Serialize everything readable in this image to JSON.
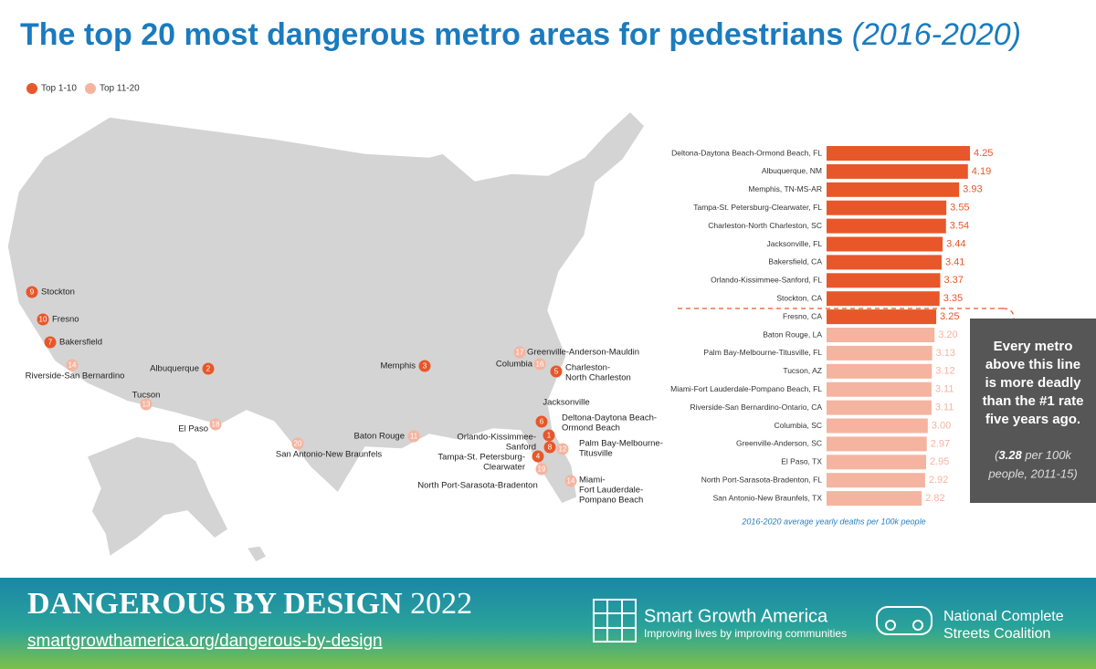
{
  "title": "The top 20 most dangerous metro areas for pedestrians",
  "title_years": "(2016-2020)",
  "legend": [
    {
      "label": "Top 1-10",
      "color": "#e8572a"
    },
    {
      "label": "Top 11-20",
      "color": "#f5b4a0"
    }
  ],
  "map_markers": [
    {
      "rank": 9,
      "lines": [
        "Stockton"
      ],
      "group": 0
    },
    {
      "rank": 10,
      "lines": [
        "Fresno"
      ],
      "group": 0
    },
    {
      "rank": 7,
      "lines": [
        "Bakersfield"
      ],
      "group": 0
    },
    {
      "rank": 14,
      "lines": [
        "Riverside-San Bernardino"
      ],
      "group": 1
    },
    {
      "rank": 2,
      "lines": [
        "Albuquerque"
      ],
      "group": 0
    },
    {
      "rank": 13,
      "lines": [
        "Tucson"
      ],
      "group": 1
    },
    {
      "rank": 18,
      "lines": [
        "El Paso"
      ],
      "group": 1
    },
    {
      "rank": 20,
      "lines": [
        "San Antonio-New Braunfels"
      ],
      "group": 1
    },
    {
      "rank": 11,
      "lines": [
        "Baton Rouge"
      ],
      "group": 1
    },
    {
      "rank": 3,
      "lines": [
        "Memphis"
      ],
      "group": 0
    },
    {
      "rank": 17,
      "lines": [
        "Greenville-Anderson-Mauldin"
      ],
      "group": 1
    },
    {
      "rank": 16,
      "lines": [
        "Columbia"
      ],
      "group": 1
    },
    {
      "rank": 5,
      "lines": [
        "Charleston-",
        "North Charleston"
      ],
      "group": 0
    },
    {
      "rank": 6,
      "lines": [
        "Jacksonville"
      ],
      "group": 0
    },
    {
      "rank": 1,
      "lines": [
        "Deltona-Daytona Beach-",
        "Ormond Beach"
      ],
      "group": 0
    },
    {
      "rank": 8,
      "lines": [
        "Orlando-Kissimmee-",
        "Sanford"
      ],
      "group": 0
    },
    {
      "rank": 12,
      "lines": [
        "Palm Bay-Melbourne-",
        "Titusville"
      ],
      "group": 1
    },
    {
      "rank": 4,
      "lines": [
        "Tampa-St. Petersburg-",
        "Clearwater"
      ],
      "group": 0
    },
    {
      "rank": 19,
      "lines": [
        "North Port-Sarasota-Bradenton"
      ],
      "group": 1
    },
    {
      "rank": 14,
      "lines": [
        "Miami-",
        "Fort Lauderdale-",
        "Pompano Beach"
      ],
      "group": 1
    }
  ],
  "chart_data": {
    "type": "bar",
    "orientation": "horizontal",
    "categories": [
      "Deltona-Daytona Beach-Ormond Beach, FL",
      "Albuquerque, NM",
      "Memphis, TN-MS-AR",
      "Tampa-St. Petersburg-Clearwater, FL",
      "Charleston-North Charleston, SC",
      "Jacksonville, FL",
      "Bakersfield, CA",
      "Orlando-Kissimmee-Sanford, FL",
      "Stockton, CA",
      "Fresno, CA",
      "Baton Rouge, LA",
      "Palm Bay-Melbourne-Titusville, FL",
      "Tucson, AZ",
      "Miami-Fort Lauderdale-Pompano Beach, FL",
      "Riverside-San Bernardino-Ontario, CA",
      "Columbia, SC",
      "Greenville-Anderson, SC",
      "El Paso, TX",
      "North Port-Sarasota-Bradenton, FL",
      "San Antonio-New Braunfels, TX"
    ],
    "values": [
      4.25,
      4.19,
      3.93,
      3.55,
      3.54,
      3.44,
      3.41,
      3.37,
      3.35,
      3.25,
      3.2,
      3.13,
      3.12,
      3.11,
      3.11,
      3.0,
      2.97,
      2.95,
      2.92,
      2.82
    ],
    "value_labels": [
      "4.25",
      "4.19",
      "3.93",
      "3.55",
      "3.54",
      "3.44",
      "3.41",
      "3.37",
      "3.35",
      "3.25",
      "3.20",
      "3.13",
      "3.12",
      "3.11",
      "3.11",
      "3.00",
      "2.97",
      "2.95",
      "2.92",
      "2.82"
    ],
    "colors": [
      "#e8572a",
      "#e8572a",
      "#e8572a",
      "#e8572a",
      "#e8572a",
      "#e8572a",
      "#e8572a",
      "#e8572a",
      "#e8572a",
      "#e8572a",
      "#f5b4a0",
      "#f5b4a0",
      "#f5b4a0",
      "#f5b4a0",
      "#f5b4a0",
      "#f5b4a0",
      "#f5b4a0",
      "#f5b4a0",
      "#f5b4a0",
      "#f5b4a0"
    ],
    "xlabel": "2016-2020 average yearly deaths per 100k people"
  },
  "callout": {
    "lines": [
      "Every metro",
      "above this line",
      "is more deadly",
      "than the #1 rate",
      "five years ago."
    ],
    "note": [
      "(",
      "3.28",
      " per 100k",
      "people, 2011-15)"
    ]
  },
  "footer": {
    "brand": "DANGEROUS BY DESIGN",
    "year": "2022",
    "url": "smartgrowthamerica.org/dangerous-by-design",
    "org1": "Smart Growth America",
    "org1_tagline": "Improving lives by improving communities",
    "org2_lines": [
      "National Complete",
      "Streets Coalition"
    ]
  }
}
